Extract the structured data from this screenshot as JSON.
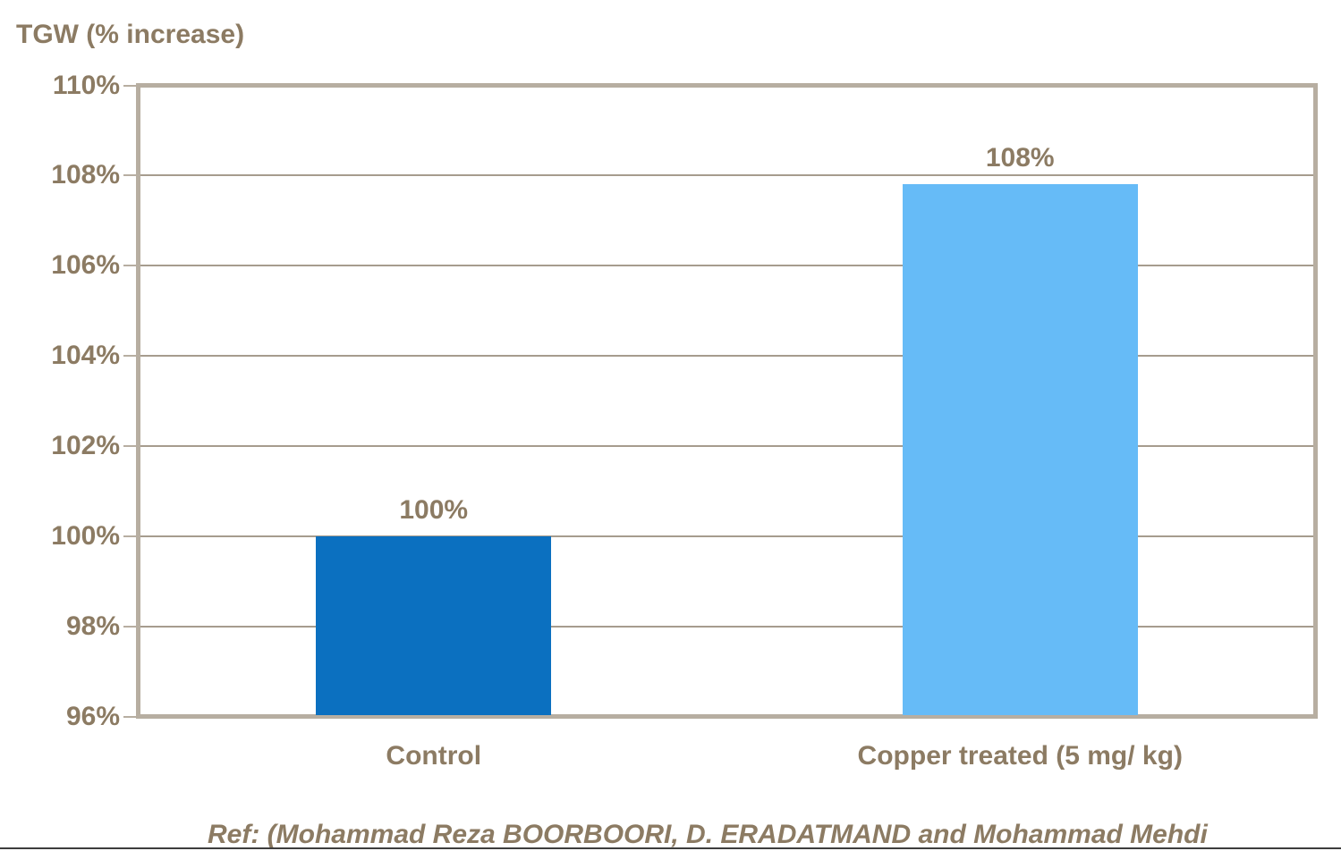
{
  "page": {
    "title": "TGW (% increase)",
    "ref_text": "Ref: (Mohammad Reza BOORBOORI, D. ERADATMAND and Mohammad Mehdi"
  },
  "colors": {
    "text": "#8c7b63",
    "frame": "#b7aea1",
    "gridline": "#a69c8e",
    "bottom_rule": "#3d3d3d",
    "bars": [
      "#0b70c0",
      "#66bbf7"
    ]
  },
  "chart_data": {
    "type": "bar",
    "title": "TGW (% increase)",
    "categories": [
      "Control",
      "Copper treated (5 mg/ kg)"
    ],
    "values": [
      100,
      108
    ],
    "drawn_values": [
      100,
      107.8
    ],
    "value_labels": [
      "100%",
      "108%"
    ],
    "series": [
      {
        "name": "TGW (% increase)",
        "values": [
          100,
          108
        ]
      }
    ],
    "xlabel": "",
    "ylabel": "TGW (% increase)",
    "ylim": [
      96,
      110
    ],
    "ytick_step": 2,
    "ytick_labels": [
      "96%",
      "98%",
      "100%",
      "102%",
      "104%",
      "106%",
      "108%",
      "110%"
    ],
    "grid": true,
    "legend": false
  }
}
